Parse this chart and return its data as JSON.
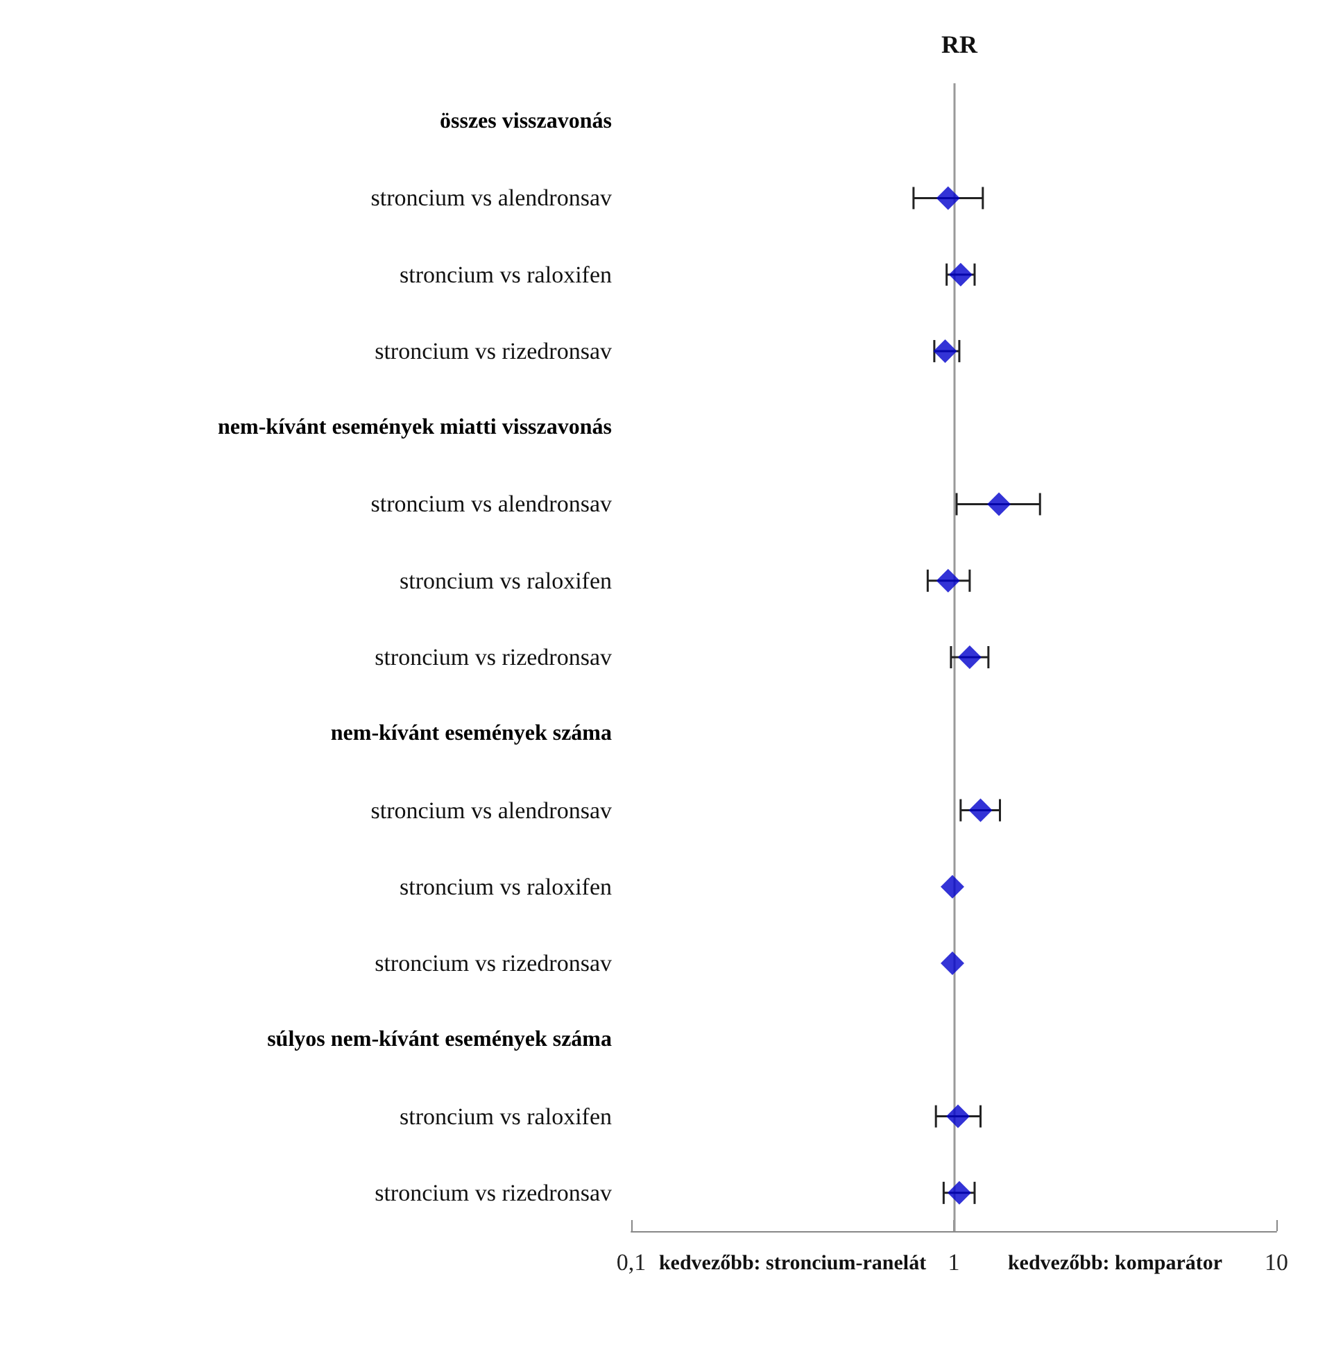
{
  "chart_data": {
    "type": "scatter",
    "title": "RR",
    "categories": [
      "összes visszavonás",
      "stroncium vs alendronsav",
      "stroncium vs raloxifen",
      "stroncium vs rizedronsav",
      "nem-kívánt események miatti visszavonás",
      "stroncium vs alendronsav",
      "stroncium vs raloxifen",
      "stroncium vs rizedronsav",
      "nem-kívánt események száma",
      "stroncium vs alendronsav",
      "stroncium vs raloxifen",
      "stroncium vs rizedronsav",
      "súlyos nem-kívánt események száma",
      "stroncium vs raloxifen",
      "stroncium vs rizedronsav"
    ],
    "values": [
      null,
      0.96,
      1.05,
      0.94,
      null,
      1.38,
      0.96,
      1.12,
      null,
      1.21,
      0.99,
      0.99,
      null,
      1.03,
      1.04
    ],
    "errors": [
      null,
      [
        0.75,
        1.23
      ],
      [
        0.95,
        1.16
      ],
      [
        0.87,
        1.04
      ],
      null,
      [
        1.02,
        1.85
      ],
      [
        0.83,
        1.12
      ],
      [
        0.98,
        1.28
      ],
      null,
      [
        1.05,
        1.39
      ],
      null,
      null,
      null,
      [
        0.88,
        1.21
      ],
      [
        0.93,
        1.16
      ]
    ],
    "color": "#0000cc",
    "marker": "diamond",
    "log": "x",
    "grid": false,
    "orientation": "horizontal",
    "xlim": [
      0.1,
      10
    ],
    "xticks": [
      {
        "value": 0.1,
        "label": "0,1"
      },
      {
        "value": 1,
        "label": "1"
      },
      {
        "value": 10,
        "label": "10"
      }
    ],
    "ref_lines": [
      {
        "axis": "x",
        "value": 1,
        "color": "#999999",
        "line_style": "solid"
      }
    ],
    "annotations": [
      "kedvezőbb: stroncium-ranelát",
      "kedvezőbb: komparátor"
    ]
  }
}
